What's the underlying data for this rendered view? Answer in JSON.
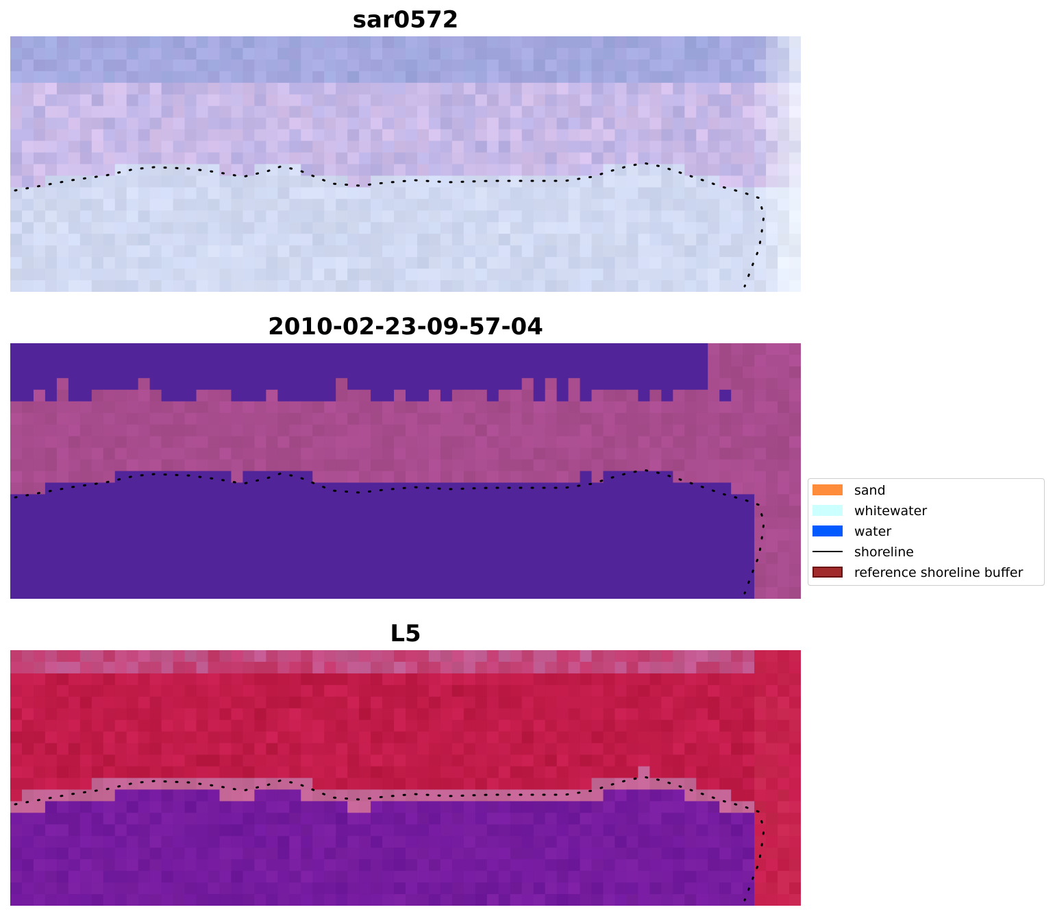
{
  "panels": [
    {
      "title": "sar0572",
      "style": "sar"
    },
    {
      "title": "2010-02-23-09-57-04",
      "style": "classified"
    },
    {
      "title": "L5",
      "style": "index"
    }
  ],
  "legend": {
    "items": [
      {
        "label": "sand",
        "color": "#ff8c3b",
        "kind": "patch"
      },
      {
        "label": "whitewater",
        "color": "#ccffff",
        "kind": "patch"
      },
      {
        "label": "water",
        "color": "#005aff",
        "kind": "patch"
      },
      {
        "label": "shoreline",
        "color": "#000000",
        "kind": "line"
      },
      {
        "label": "reference shoreline buffer",
        "color": "#a12a2a",
        "kind": "patch"
      }
    ]
  },
  "colors": {
    "classified_water": "#52249a",
    "classified_buffer": "#a84c8e",
    "index_land": "#c81e4e",
    "index_water": "#7a1fa0",
    "sar_top": "#a8a8e0",
    "sar_bottom": "#d4dcf2"
  }
}
